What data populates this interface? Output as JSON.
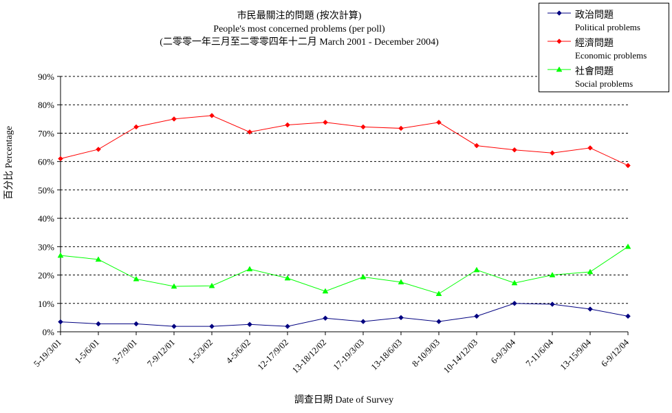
{
  "chart_data": {
    "type": "line",
    "title": "市民最關注的問題 (按次計算)",
    "subtitle": "People's most concerned problems  (per poll)",
    "subtitle2": "(二零零一年三月至二零零四年十二月 March 2001 - December 2004)",
    "xlabel": "調查日期 Date of Survey",
    "ylabel": "百分比 Percentage",
    "ylim": [
      0,
      90
    ],
    "yticks": [
      "0%",
      "10%",
      "20%",
      "30%",
      "40%",
      "50%",
      "60%",
      "70%",
      "80%",
      "90%"
    ],
    "grid": true,
    "legend_position": "top-right",
    "categories": [
      "5-19/3/01",
      "1-5/6/01",
      "3-7/9/01",
      "7-9/12/01",
      "1-5/3/02",
      "4-5/6/02",
      "12-17/9/02",
      "13-18/12/02",
      "17-19/3/03",
      "13-18/6/03",
      "8-10/9/03",
      "10-14/12/03",
      "6-9/3/04",
      "7-11/6/04",
      "13-15/9/04",
      "6-9/12/04"
    ],
    "series": [
      {
        "name": "政治問題",
        "name_en": "Political problems",
        "color": "#000080",
        "marker": "diamond",
        "values": [
          3.5,
          2.8,
          2.8,
          1.9,
          1.9,
          2.6,
          1.9,
          4.8,
          3.6,
          5.0,
          3.6,
          5.5,
          10.0,
          9.7,
          8.0,
          5.5
        ]
      },
      {
        "name": "經濟問題",
        "name_en": "Economic problems",
        "color": "#ff0000",
        "marker": "diamond",
        "values": [
          61.0,
          64.3,
          72.2,
          75.0,
          76.2,
          70.4,
          72.9,
          73.8,
          72.2,
          71.7,
          73.8,
          65.6,
          64.1,
          63.0,
          64.8,
          58.6
        ]
      },
      {
        "name": "社會問題",
        "name_en": "Social problems",
        "color": "#00ff00",
        "marker": "triangle",
        "values": [
          26.9,
          25.5,
          18.6,
          16.0,
          16.2,
          22.1,
          18.9,
          14.3,
          19.3,
          17.5,
          13.4,
          21.8,
          17.2,
          20.0,
          21.1,
          30.0
        ]
      }
    ]
  }
}
